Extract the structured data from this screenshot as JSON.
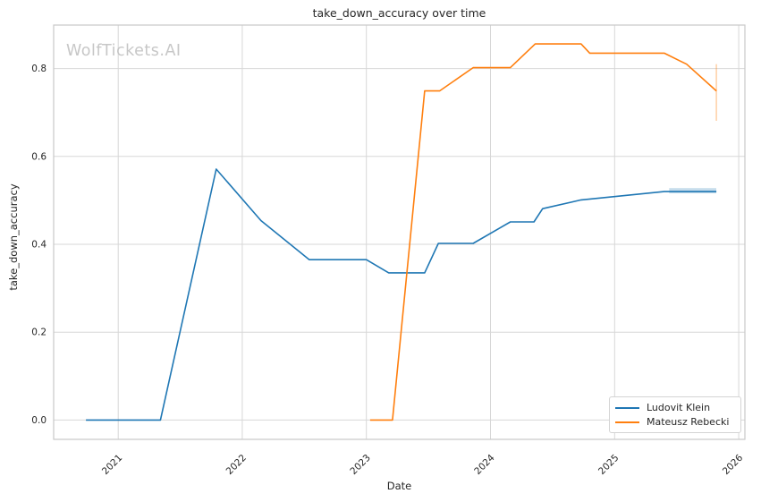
{
  "chart_data": {
    "type": "line",
    "title": "take_down_accuracy over time",
    "xlabel": "Date",
    "ylabel": "take_down_accuracy",
    "watermark": "WolfTickets.AI",
    "grid": true,
    "legend_position": "lower right",
    "x_ticks": [
      2021,
      2022,
      2023,
      2024,
      2025,
      2026
    ],
    "y_ticks": [
      0.0,
      0.2,
      0.4,
      0.6,
      0.8
    ],
    "xlim": [
      2020.48,
      2026.05
    ],
    "ylim": [
      -0.044,
      0.899
    ],
    "colors": {
      "grid": "#d7d7d7",
      "spine": "#c9c9c9",
      "text": "#262626",
      "watermark": "#c7c7c7"
    },
    "series": [
      {
        "name": "Ludovit Klein",
        "color": "#1f77b4",
        "x": [
          2020.74,
          2021.34,
          2021.79,
          2022.15,
          2022.54,
          2023.0,
          2023.18,
          2023.47,
          2023.58,
          2023.86,
          2024.16,
          2024.35,
          2024.42,
          2024.73,
          2025.4,
          2025.82
        ],
        "y": [
          0.0,
          0.0,
          0.571,
          0.454,
          0.365,
          0.365,
          0.335,
          0.335,
          0.402,
          0.402,
          0.451,
          0.451,
          0.481,
          0.501,
          0.52,
          0.52
        ]
      },
      {
        "name": "Mateusz Rebecki",
        "color": "#ff7f0e",
        "x": [
          2023.03,
          2023.21,
          2023.47,
          2023.59,
          2023.86,
          2024.16,
          2024.36,
          2024.73,
          2024.8,
          2025.4,
          2025.58,
          2025.82
        ],
        "y": [
          0.0,
          0.0,
          0.749,
          0.749,
          0.802,
          0.802,
          0.856,
          0.856,
          0.835,
          0.835,
          0.81,
          0.749
        ]
      }
    ],
    "error_bar": {
      "series": "Mateusz Rebecki",
      "x": 2025.82,
      "y0": 0.681,
      "y1": 0.81,
      "color": "#ff7f0e",
      "opacity": 0.35
    },
    "band": {
      "series": "Ludovit Klein",
      "x0": 2025.44,
      "x1": 2025.82,
      "y0": 0.516,
      "y1": 0.528,
      "color": "#1f77b4",
      "opacity": 0.25
    }
  }
}
